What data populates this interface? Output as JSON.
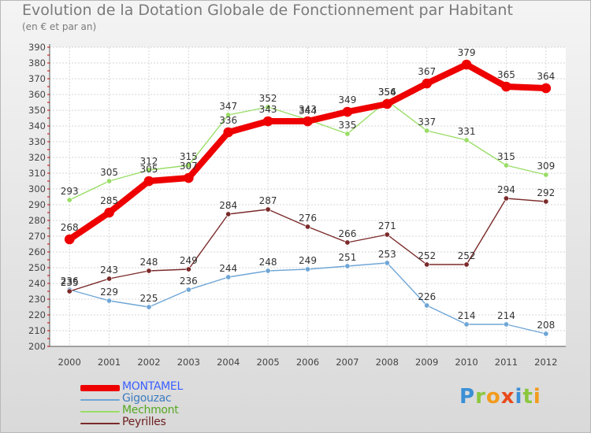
{
  "title": "Evolution de la Dotation Globale de Fonctionnement par Habitant",
  "subtitle": "(en € et par an)",
  "logo": {
    "letters": [
      {
        "ch": "P",
        "color": "#3a8fd6"
      },
      {
        "ch": "r",
        "color": "#8cc63f"
      },
      {
        "ch": "o",
        "color": "#f29b1d"
      },
      {
        "ch": "x",
        "color": "#e84a1c"
      },
      {
        "ch": "i",
        "color": "#3a8fd6"
      },
      {
        "ch": "t",
        "color": "#8cc63f"
      },
      {
        "ch": "i",
        "color": "#f29b1d"
      }
    ]
  },
  "chart_data": {
    "type": "line",
    "title": "Evolution de la Dotation Globale de Fonctionnement par Habitant",
    "subtitle": "(en € et par an)",
    "xlabel": "",
    "ylabel": "",
    "x": [
      "2000",
      "2001",
      "2002",
      "2003",
      "2004",
      "2005",
      "2006",
      "2007",
      "2008",
      "2009",
      "2010",
      "2011",
      "2012"
    ],
    "ylim": [
      200,
      390
    ],
    "yticks": [
      200,
      210,
      220,
      230,
      240,
      250,
      260,
      270,
      280,
      290,
      300,
      310,
      320,
      330,
      340,
      350,
      360,
      370,
      380,
      390
    ],
    "grid": true,
    "legend_position": "bottom-left",
    "series": [
      {
        "name": "MONTAMEL",
        "color": "#ee0000",
        "text_color": "#3a5fff",
        "width": 8,
        "marker": 6,
        "values": [
          268,
          285,
          305,
          307,
          336,
          343,
          343,
          349,
          354,
          367,
          379,
          365,
          364
        ]
      },
      {
        "name": "Gigouzac",
        "color": "#6fa6d6",
        "text_color": "#3d7cc0",
        "width": 1.4,
        "marker": 3.2,
        "values": [
          236,
          229,
          225,
          236,
          244,
          248,
          249,
          251,
          253,
          226,
          214,
          214,
          208
        ]
      },
      {
        "name": "Mechmont",
        "color": "#99dd66",
        "text_color": "#55a823",
        "width": 1.4,
        "marker": 3.2,
        "values": [
          293,
          305,
          312,
          315,
          347,
          352,
          344,
          335,
          356,
          337,
          331,
          315,
          309
        ]
      },
      {
        "name": "Peyrilles",
        "color": "#7b2a2a",
        "text_color": "#6b1f1f",
        "width": 1.4,
        "marker": 3.2,
        "values": [
          235,
          243,
          248,
          249,
          284,
          287,
          276,
          266,
          271,
          252,
          252,
          294,
          292
        ]
      }
    ]
  }
}
